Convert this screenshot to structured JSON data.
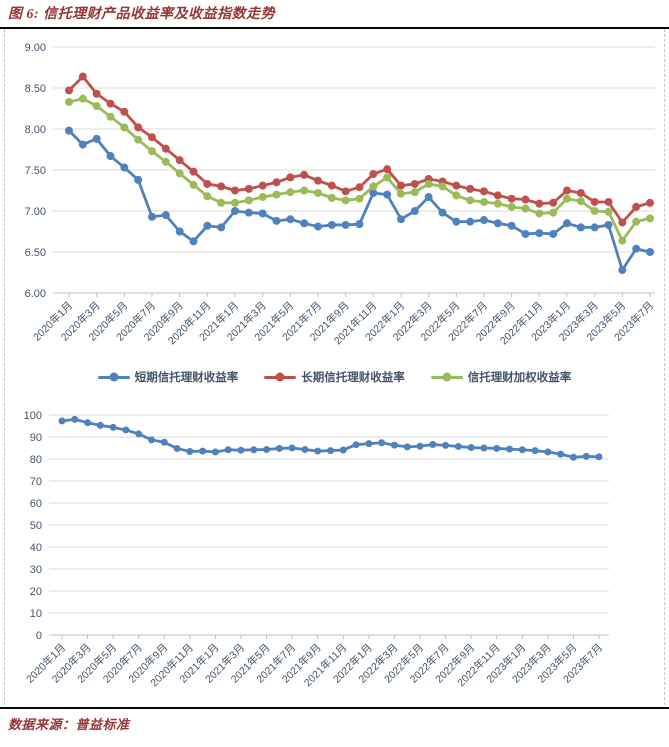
{
  "header": {
    "title": "图 6: 信托理财产品收益率及收益指数走势"
  },
  "footer": {
    "source_label": "数据来源：普益标准"
  },
  "colors": {
    "short_term": "#4F81BD",
    "long_term": "#C0504D",
    "weighted": "#9BBB59",
    "index_line": "#4F81BD",
    "title_text": "#953735",
    "axis_text": "#44546A",
    "gridline": "#D9D9D9",
    "axis_line": "#BFBFBF"
  },
  "chart_data": [
    {
      "type": "line",
      "title": "",
      "xlabel": "",
      "ylabel": "",
      "ylim": [
        6.0,
        9.0
      ],
      "ytick": 0.5,
      "y_decimals": 2,
      "x_label_every": 2,
      "grid": true,
      "legend_position": "bottom",
      "categories": [
        "2020年1月",
        "2020年2月",
        "2020年3月",
        "2020年4月",
        "2020年5月",
        "2020年6月",
        "2020年7月",
        "2020年8月",
        "2020年9月",
        "2020年10月",
        "2020年11月",
        "2020年12月",
        "2021年1月",
        "2021年2月",
        "2021年3月",
        "2021年4月",
        "2021年5月",
        "2021年6月",
        "2021年7月",
        "2021年8月",
        "2021年9月",
        "2021年10月",
        "2021年11月",
        "2021年12月",
        "2022年1月",
        "2022年2月",
        "2022年3月",
        "2022年4月",
        "2022年5月",
        "2022年6月",
        "2022年7月",
        "2022年8月",
        "2022年9月",
        "2022年10月",
        "2022年11月",
        "2022年12月",
        "2023年1月",
        "2023年2月",
        "2023年3月",
        "2023年4月",
        "2023年5月",
        "2023年6月",
        "2023年7月"
      ],
      "series": [
        {
          "name": "短期信托理财收益率",
          "color": "#4F81BD",
          "values": [
            7.98,
            7.81,
            7.88,
            7.67,
            7.53,
            7.38,
            6.93,
            6.95,
            6.75,
            6.63,
            6.82,
            6.8,
            7.0,
            6.98,
            6.97,
            6.88,
            6.9,
            6.85,
            6.81,
            6.83,
            6.83,
            6.84,
            7.22,
            7.2,
            6.9,
            7.0,
            7.17,
            6.98,
            6.87,
            6.87,
            6.89,
            6.85,
            6.82,
            6.72,
            6.73,
            6.72,
            6.85,
            6.8,
            6.8,
            6.83,
            6.28,
            6.54,
            6.5
          ]
        },
        {
          "name": "长期信托理财收益率",
          "color": "#C0504D",
          "values": [
            8.47,
            8.64,
            8.43,
            8.31,
            8.21,
            8.02,
            7.9,
            7.76,
            7.62,
            7.48,
            7.33,
            7.3,
            7.25,
            7.27,
            7.31,
            7.35,
            7.41,
            7.44,
            7.37,
            7.31,
            7.24,
            7.29,
            7.45,
            7.51,
            7.31,
            7.33,
            7.39,
            7.36,
            7.31,
            7.27,
            7.24,
            7.19,
            7.15,
            7.14,
            7.09,
            7.1,
            7.25,
            7.22,
            7.11,
            7.11,
            6.86,
            7.05,
            7.1
          ]
        },
        {
          "name": "信托理财加权收益率",
          "color": "#9BBB59",
          "values": [
            8.33,
            8.37,
            8.28,
            8.15,
            8.02,
            7.87,
            7.73,
            7.6,
            7.46,
            7.32,
            7.18,
            7.1,
            7.1,
            7.13,
            7.17,
            7.2,
            7.23,
            7.25,
            7.22,
            7.16,
            7.13,
            7.15,
            7.3,
            7.41,
            7.21,
            7.23,
            7.33,
            7.3,
            7.19,
            7.13,
            7.11,
            7.09,
            7.05,
            7.03,
            6.97,
            6.98,
            7.15,
            7.12,
            7.0,
            6.99,
            6.64,
            6.87,
            6.91
          ]
        }
      ]
    },
    {
      "type": "line",
      "title": "",
      "xlabel": "",
      "ylabel": "",
      "ylim": [
        0,
        100
      ],
      "ytick": 10,
      "y_decimals": 0,
      "x_label_every": 2,
      "grid": true,
      "legend_position": "none",
      "categories": [
        "2020年1月",
        "2020年2月",
        "2020年3月",
        "2020年4月",
        "2020年5月",
        "2020年6月",
        "2020年7月",
        "2020年8月",
        "2020年9月",
        "2020年10月",
        "2020年11月",
        "2020年12月",
        "2021年1月",
        "2021年2月",
        "2021年3月",
        "2021年4月",
        "2021年5月",
        "2021年6月",
        "2021年7月",
        "2021年8月",
        "2021年9月",
        "2021年10月",
        "2021年11月",
        "2021年12月",
        "2022年1月",
        "2022年2月",
        "2022年3月",
        "2022年4月",
        "2022年5月",
        "2022年6月",
        "2022年7月",
        "2022年8月",
        "2022年9月",
        "2022年10月",
        "2022年11月",
        "2022年12月",
        "2023年1月",
        "2023年2月",
        "2023年3月",
        "2023年4月",
        "2023年5月",
        "2023年6月",
        "2023年7月"
      ],
      "series": [
        {
          "name": "",
          "color": "#4F81BD",
          "values": [
            97.3,
            98.0,
            96.5,
            95.3,
            94.4,
            93.2,
            91.4,
            88.7,
            87.6,
            84.8,
            83.4,
            83.6,
            83.2,
            84.2,
            84.0,
            84.2,
            84.3,
            84.8,
            85.0,
            84.3,
            83.6,
            83.8,
            84.1,
            86.5,
            87.0,
            87.4,
            86.3,
            85.5,
            85.8,
            86.6,
            86.2,
            85.7,
            85.2,
            85.0,
            84.8,
            84.5,
            84.2,
            83.8,
            83.2,
            82.2,
            80.8,
            81.2,
            81.0
          ]
        }
      ]
    }
  ]
}
